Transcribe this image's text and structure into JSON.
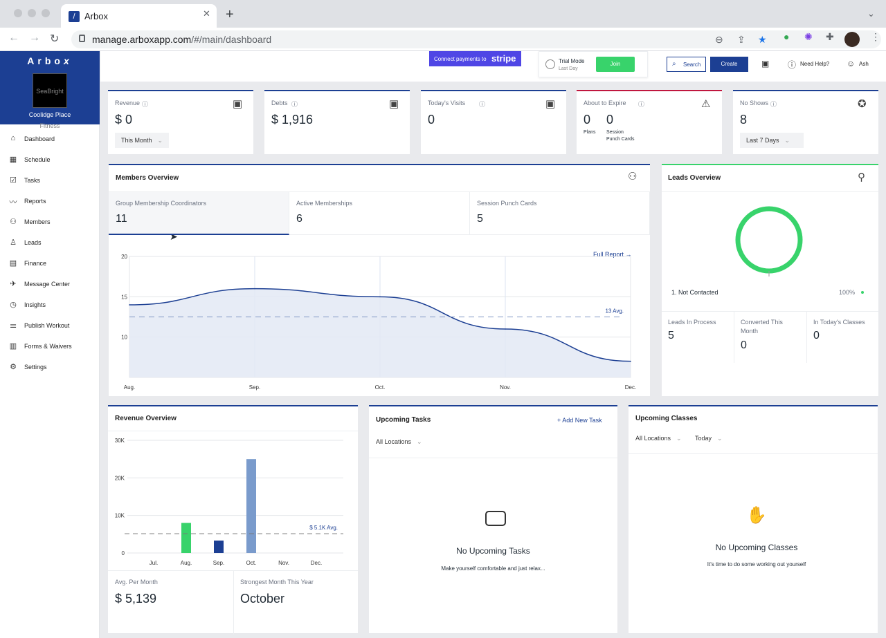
{
  "browser": {
    "tab_title": "Arbox",
    "url_host": "manage.arboxapp.com",
    "url_path": "/#/main/dashboard"
  },
  "sidebar": {
    "brand": "Arbo",
    "brand_x": "x",
    "logo_text": "SeaBright Fitness",
    "location": "Coolidge Place",
    "items": [
      {
        "label": "Dashboard",
        "icon": "home-icon"
      },
      {
        "label": "Schedule",
        "icon": "calendar-icon"
      },
      {
        "label": "Tasks",
        "icon": "checklist-icon"
      },
      {
        "label": "Reports",
        "icon": "chart-line-icon"
      },
      {
        "label": "Members",
        "icon": "members-icon"
      },
      {
        "label": "Leads",
        "icon": "lead-user-icon"
      },
      {
        "label": "Finance",
        "icon": "cash-icon"
      },
      {
        "label": "Message Center",
        "icon": "paper-plane-icon"
      },
      {
        "label": "Insights",
        "icon": "clock-insights-icon"
      },
      {
        "label": "Publish Workout",
        "icon": "dumbbell-icon"
      },
      {
        "label": "Forms & Waivers",
        "icon": "forms-icon"
      },
      {
        "label": "Settings",
        "icon": "gear-icon"
      }
    ]
  },
  "topbar": {
    "connect_text": "Connect payments to",
    "stripe": "stripe",
    "trial_mode": "Trial Mode",
    "last_day": "Last Day",
    "join": "Join",
    "search": "Search",
    "create": "Create",
    "need_help": "Need Help?",
    "user": "Ash"
  },
  "stats": [
    {
      "label": "Revenue",
      "value": "$ 0",
      "dropdown": "This Month",
      "accent": "#1c3f93"
    },
    {
      "label": "Debts",
      "value": "$ 1,916",
      "accent": "#1c3f93"
    },
    {
      "label": "Today's Visits",
      "value": "0",
      "accent": "#1c3f93"
    },
    {
      "label": "About to Expire",
      "plans_value": "0",
      "plans_label": "Plans",
      "session_value": "0",
      "session_label_1": "Session",
      "session_label_2": "Punch Cards",
      "accent": "#c0163e"
    },
    {
      "label": "No Shows",
      "value": "8",
      "dropdown": "Last 7 Days",
      "accent": "#1c3f93"
    }
  ],
  "members_overview": {
    "title": "Members Overview",
    "tabs": [
      {
        "label": "Group Membership Coordinators",
        "value": "11"
      },
      {
        "label": "Active Memberships",
        "value": "6"
      },
      {
        "label": "Session Punch Cards",
        "value": "5"
      }
    ],
    "full_report": "Full Report →",
    "avg_label": "13 Avg."
  },
  "leads_overview": {
    "title": "Leads Overview",
    "legend_label": "1. Not Contacted",
    "legend_percent": "100%",
    "stats": [
      {
        "label": "Leads In Process",
        "value": "5"
      },
      {
        "label": "Converted This Month",
        "value": "0"
      },
      {
        "label": "In Today's Classes",
        "value": "0"
      }
    ]
  },
  "revenue_overview": {
    "title": "Revenue Overview",
    "avg_label": "$ 5.1K Avg.",
    "avg_per_month_label": "Avg. Per Month",
    "avg_per_month_value": "$ 5,139",
    "strongest_label": "Strongest Month This Year",
    "strongest_value": "October"
  },
  "upcoming_tasks": {
    "title": "Upcoming Tasks",
    "add": "+ Add New Task",
    "filter": "All Locations",
    "empty_title": "No Upcoming Tasks",
    "empty_sub": "Make yourself comfortable and just relax..."
  },
  "upcoming_classes": {
    "title": "Upcoming Classes",
    "filter_location": "All Locations",
    "filter_day": "Today",
    "empty_title": "No Upcoming Classes",
    "empty_sub": "It's time to do some working out yourself"
  },
  "colors": {
    "brand": "#1c3f93",
    "green": "#38d36b",
    "danger": "#c0163e",
    "area_fill": "#e3e9f5"
  },
  "chart_data": [
    {
      "type": "area",
      "x": [
        "Aug.",
        "Sep.",
        "Oct.",
        "Nov.",
        "Dec."
      ],
      "values": [
        14,
        16,
        15,
        11,
        7
      ],
      "yticks": [
        10,
        15,
        20
      ],
      "ylim": [
        5,
        20
      ],
      "avg": 13,
      "grid": true
    },
    {
      "type": "bar",
      "categories": [
        "Jul.",
        "Aug.",
        "Sep.",
        "Oct.",
        "Nov.",
        "Dec."
      ],
      "values": [
        0,
        8000,
        3300,
        25000,
        0,
        0
      ],
      "colors": [
        "#1c3f93",
        "#38d36b",
        "#1c3f93",
        "#7a9bcc",
        "#1c3f93",
        "#1c3f93"
      ],
      "yticks": [
        "0",
        "10K",
        "20K",
        "30K"
      ],
      "ylim": [
        0,
        30000
      ],
      "avg": 5139,
      "grid": true
    },
    {
      "type": "pie",
      "labels": [
        "Not Contacted"
      ],
      "values": [
        100
      ],
      "colors": [
        "#38d36b"
      ]
    }
  ]
}
